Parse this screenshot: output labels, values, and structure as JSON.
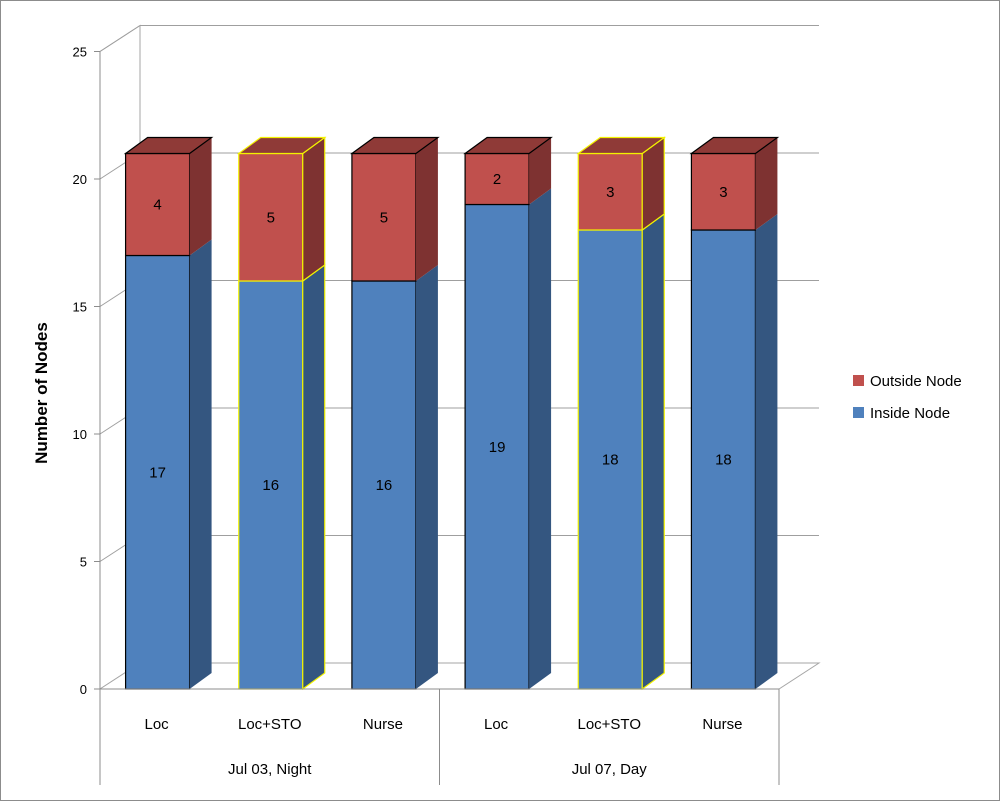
{
  "chart_data": {
    "type": "bar",
    "stacked": true,
    "three_d": true,
    "ylabel": "Number of Nodes",
    "ylim": [
      0,
      25
    ],
    "yticks": [
      0,
      5,
      10,
      15,
      20,
      25
    ],
    "grid": true,
    "legend_position": "right",
    "categories": [
      "Loc",
      "Loc+STO",
      "Nurse",
      "Loc",
      "Loc+STO",
      "Nurse"
    ],
    "groups": [
      {
        "label": "Jul 03, Night",
        "categories": [
          "Loc",
          "Loc+STO",
          "Nurse"
        ]
      },
      {
        "label": "Jul 07, Day",
        "categories": [
          "Loc",
          "Loc+STO",
          "Nurse"
        ]
      }
    ],
    "highlighted_bars": [
      1,
      4
    ],
    "highlight_color": "#f2f200",
    "series": [
      {
        "name": "Inside Node",
        "values": [
          17,
          16,
          16,
          19,
          18,
          18
        ],
        "color": "#4f81bd",
        "side_color": "#345680",
        "top_color": "#3e6a9f"
      },
      {
        "name": "Outside Node",
        "values": [
          4,
          5,
          5,
          2,
          3,
          3
        ],
        "color": "#c0504d",
        "side_color": "#7e3231",
        "top_color": "#8f3a37"
      }
    ],
    "legend": [
      "Outside Node",
      "Inside Node"
    ]
  }
}
